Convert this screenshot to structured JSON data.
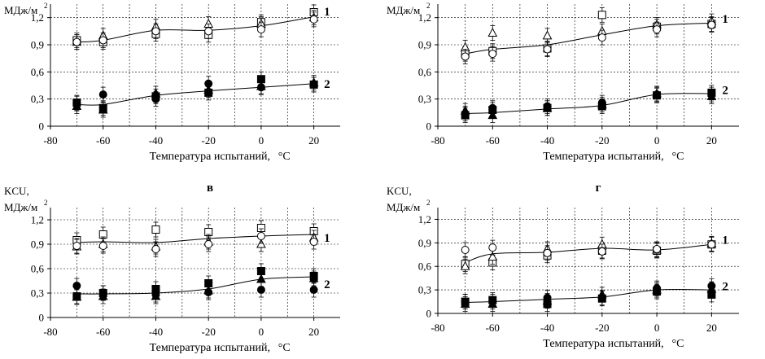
{
  "chart_data": [
    {
      "type": "scatter",
      "title": "",
      "ylabel_top": "",
      "ylabel_units": "МДж/м",
      "ylabel_sup": "2",
      "xlabel": "Температура испытаний,",
      "xlabel_unit": "°С",
      "xlim": [
        -80,
        30
      ],
      "ylim": [
        0,
        1.35
      ],
      "xticks": [
        "-80",
        "-60",
        "-40",
        "-20",
        "0",
        "20"
      ],
      "yticks": [
        "0",
        "0,3",
        "0,6",
        "0,9",
        "1,2"
      ],
      "grid": true,
      "curve_labels": [
        {
          "text": "1",
          "x": 25,
          "y": 1.27
        },
        {
          "text": "2",
          "x": 25,
          "y": 0.47
        }
      ],
      "series": [
        {
          "marker": "open-square",
          "points": [
            [
              -70,
              0.95
            ],
            [
              -60,
              0.93
            ],
            [
              -40,
              1.02
            ],
            [
              -20,
              1.01
            ],
            [
              0,
              1.15
            ],
            [
              20,
              1.26
            ]
          ]
        },
        {
          "marker": "open-triangle",
          "points": [
            [
              -70,
              0.93
            ],
            [
              -60,
              1.0
            ],
            [
              -40,
              1.1
            ],
            [
              -20,
              1.13
            ],
            [
              0,
              1.13
            ],
            [
              20,
              1.2
            ]
          ]
        },
        {
          "marker": "open-circle",
          "points": [
            [
              -70,
              0.93
            ],
            [
              -60,
              0.95
            ],
            [
              -40,
              1.05
            ],
            [
              -20,
              1.05
            ],
            [
              0,
              1.07
            ],
            [
              20,
              1.18
            ]
          ]
        },
        {
          "marker": "filled-square",
          "points": [
            [
              -70,
              0.26
            ],
            [
              -60,
              0.2
            ],
            [
              -40,
              0.33
            ],
            [
              -20,
              0.37
            ],
            [
              0,
              0.52
            ],
            [
              20,
              0.46
            ]
          ]
        },
        {
          "marker": "filled-triangle",
          "points": [
            [
              -70,
              0.22
            ],
            [
              -60,
              0.18
            ],
            [
              -40,
              0.36
            ],
            [
              -20,
              0.4
            ],
            [
              0,
              0.44
            ],
            [
              20,
              0.48
            ]
          ]
        },
        {
          "marker": "filled-circle",
          "points": [
            [
              -70,
              0.25
            ],
            [
              -60,
              0.35
            ],
            [
              -40,
              0.3
            ],
            [
              -20,
              0.47
            ],
            [
              0,
              0.43
            ],
            [
              20,
              0.46
            ]
          ]
        }
      ],
      "trend": [
        {
          "points": [
            [
              -70,
              0.93
            ],
            [
              -60,
              0.95
            ],
            [
              -40,
              1.06
            ],
            [
              -20,
              1.06
            ],
            [
              0,
              1.11
            ],
            [
              20,
              1.21
            ]
          ]
        },
        {
          "points": [
            [
              -70,
              0.24
            ],
            [
              -60,
              0.24
            ],
            [
              -40,
              0.34
            ],
            [
              -20,
              0.39
            ],
            [
              0,
              0.43
            ],
            [
              20,
              0.47
            ]
          ]
        }
      ]
    },
    {
      "type": "scatter",
      "title": "",
      "ylabel_top": "",
      "ylabel_units": "МДж/м",
      "ylabel_sup": "2",
      "xlabel": "Температура испытаний,",
      "xlabel_unit": "°С",
      "xlim": [
        -80,
        30
      ],
      "ylim": [
        0,
        1.35
      ],
      "xticks": [
        "-80",
        "-60",
        "-40",
        "-20",
        "0",
        "20"
      ],
      "yticks": [
        "0",
        "0,3",
        "0,6",
        "0,9",
        "1,2"
      ],
      "grid": true,
      "curve_labels": [
        {
          "text": "1",
          "x": 25,
          "y": 1.19
        },
        {
          "text": "2",
          "x": 25,
          "y": 0.4
        }
      ],
      "series": [
        {
          "marker": "open-square",
          "points": [
            [
              -70,
              0.8
            ],
            [
              -60,
              0.83
            ],
            [
              -40,
              0.86
            ],
            [
              -20,
              1.23
            ],
            [
              0,
              1.1
            ],
            [
              20,
              1.13
            ]
          ]
        },
        {
          "marker": "open-triangle",
          "points": [
            [
              -70,
              0.87
            ],
            [
              -60,
              1.03
            ],
            [
              -40,
              1.0
            ],
            [
              -20,
              1.05
            ],
            [
              0,
              1.12
            ],
            [
              20,
              1.16
            ]
          ]
        },
        {
          "marker": "open-circle",
          "points": [
            [
              -70,
              0.77
            ],
            [
              -60,
              0.8
            ],
            [
              -40,
              0.85
            ],
            [
              -20,
              0.98
            ],
            [
              0,
              1.07
            ],
            [
              20,
              1.12
            ]
          ]
        },
        {
          "marker": "filled-square",
          "points": [
            [
              -70,
              0.12
            ],
            [
              -60,
              0.18
            ],
            [
              -40,
              0.2
            ],
            [
              -20,
              0.22
            ],
            [
              0,
              0.34
            ],
            [
              20,
              0.37
            ]
          ]
        },
        {
          "marker": "filled-triangle",
          "points": [
            [
              -70,
              0.17
            ],
            [
              -60,
              0.12
            ],
            [
              -40,
              0.2
            ],
            [
              -20,
              0.24
            ],
            [
              0,
              0.36
            ],
            [
              20,
              0.33
            ]
          ]
        },
        {
          "marker": "filled-circle",
          "points": [
            [
              -70,
              0.14
            ],
            [
              -60,
              0.2
            ],
            [
              -40,
              0.22
            ],
            [
              -20,
              0.26
            ],
            [
              0,
              0.35
            ],
            [
              20,
              0.35
            ]
          ]
        }
      ],
      "trend": [
        {
          "points": [
            [
              -70,
              0.8
            ],
            [
              -60,
              0.85
            ],
            [
              -40,
              0.9
            ],
            [
              -20,
              1.01
            ],
            [
              0,
              1.11
            ],
            [
              20,
              1.14
            ]
          ]
        },
        {
          "points": [
            [
              -70,
              0.14
            ],
            [
              -60,
              0.15
            ],
            [
              -40,
              0.19
            ],
            [
              -20,
              0.23
            ],
            [
              0,
              0.35
            ],
            [
              20,
              0.36
            ]
          ]
        }
      ]
    },
    {
      "type": "scatter",
      "title": "в",
      "ylabel_top": "KCU,",
      "ylabel_units": "МДж/м",
      "ylabel_sup": "2",
      "xlabel": "Температура испытаний,",
      "xlabel_unit": "°С",
      "xlim": [
        -80,
        30
      ],
      "ylim": [
        0,
        1.35
      ],
      "xticks": [
        "-80",
        "-60",
        "-40",
        "-20",
        "0",
        "20"
      ],
      "yticks": [
        "0",
        "0,3",
        "0,6",
        "0,9",
        "1,2"
      ],
      "grid": true,
      "curve_labels": [
        {
          "text": "1",
          "x": 25,
          "y": 0.98
        },
        {
          "text": "2",
          "x": 25,
          "y": 0.41
        }
      ],
      "series": [
        {
          "marker": "open-square",
          "points": [
            [
              -70,
              0.95
            ],
            [
              -60,
              1.02
            ],
            [
              -40,
              1.08
            ],
            [
              -20,
              1.05
            ],
            [
              0,
              1.1
            ],
            [
              20,
              1.06
            ]
          ]
        },
        {
          "marker": "open-triangle",
          "points": [
            [
              -70,
              0.87
            ],
            [
              -60,
              0.9
            ],
            [
              -40,
              0.87
            ],
            [
              -20,
              0.93
            ],
            [
              0,
              0.9
            ],
            [
              20,
              0.98
            ]
          ]
        },
        {
          "marker": "open-circle",
          "points": [
            [
              -70,
              0.88
            ],
            [
              -60,
              0.88
            ],
            [
              -40,
              0.84
            ],
            [
              -20,
              0.9
            ],
            [
              0,
              1.0
            ],
            [
              20,
              0.93
            ]
          ]
        },
        {
          "marker": "filled-square",
          "points": [
            [
              -70,
              0.26
            ],
            [
              -60,
              0.3
            ],
            [
              -40,
              0.35
            ],
            [
              -20,
              0.42
            ],
            [
              0,
              0.57
            ],
            [
              20,
              0.51
            ]
          ]
        },
        {
          "marker": "filled-triangle",
          "points": [
            [
              -70,
              0.25
            ],
            [
              -60,
              0.26
            ],
            [
              -40,
              0.26
            ],
            [
              -20,
              0.33
            ],
            [
              0,
              0.47
            ],
            [
              20,
              0.48
            ]
          ]
        },
        {
          "marker": "filled-circle",
          "points": [
            [
              -70,
              0.39
            ],
            [
              -60,
              0.3
            ],
            [
              -40,
              0.28
            ],
            [
              -20,
              0.31
            ],
            [
              0,
              0.34
            ],
            [
              20,
              0.34
            ]
          ]
        }
      ],
      "trend": [
        {
          "points": [
            [
              -70,
              0.92
            ],
            [
              -60,
              0.93
            ],
            [
              -40,
              0.92
            ],
            [
              -20,
              0.97
            ],
            [
              0,
              1.0
            ],
            [
              20,
              1.02
            ]
          ]
        },
        {
          "points": [
            [
              -70,
              0.29
            ],
            [
              -60,
              0.29
            ],
            [
              -40,
              0.3
            ],
            [
              -20,
              0.35
            ],
            [
              0,
              0.47
            ],
            [
              20,
              0.5
            ]
          ]
        }
      ]
    },
    {
      "type": "scatter",
      "title": "г",
      "ylabel_top": "KCU,",
      "ylabel_units": "МДж/м",
      "ylabel_sup": "2",
      "xlabel": "Температура испытаний,",
      "xlabel_unit": "°С",
      "xlim": [
        -80,
        30
      ],
      "ylim": [
        0,
        1.35
      ],
      "xticks": [
        "-80",
        "-60",
        "-40",
        "-20",
        "0",
        "20"
      ],
      "yticks": [
        "0",
        "0,3",
        "0,6",
        "0,9",
        "1,2"
      ],
      "grid": true,
      "curve_labels": [
        {
          "text": "1",
          "x": 25,
          "y": 0.94
        },
        {
          "text": "2",
          "x": 25,
          "y": 0.35
        }
      ],
      "series": [
        {
          "marker": "open-square",
          "points": [
            [
              -70,
              0.63
            ],
            [
              -60,
              0.65
            ],
            [
              -40,
              0.74
            ],
            [
              -20,
              0.8
            ],
            [
              0,
              0.8
            ],
            [
              20,
              0.88
            ]
          ]
        },
        {
          "marker": "open-triangle",
          "points": [
            [
              -70,
              0.6
            ],
            [
              -60,
              0.72
            ],
            [
              -40,
              0.82
            ],
            [
              -20,
              0.88
            ],
            [
              0,
              0.81
            ],
            [
              20,
              0.89
            ]
          ]
        },
        {
          "marker": "open-circle",
          "points": [
            [
              -70,
              0.81
            ],
            [
              -60,
              0.84
            ],
            [
              -40,
              0.77
            ],
            [
              -20,
              0.79
            ],
            [
              0,
              0.82
            ],
            [
              20,
              0.88
            ]
          ]
        },
        {
          "marker": "filled-square",
          "points": [
            [
              -70,
              0.15
            ],
            [
              -60,
              0.17
            ],
            [
              -40,
              0.12
            ],
            [
              -20,
              0.19
            ],
            [
              0,
              0.28
            ],
            [
              20,
              0.24
            ]
          ]
        },
        {
          "marker": "filled-triangle",
          "points": [
            [
              -70,
              0.12
            ],
            [
              -60,
              0.12
            ],
            [
              -40,
              0.16
            ],
            [
              -20,
              0.24
            ],
            [
              0,
              0.3
            ],
            [
              20,
              0.31
            ]
          ]
        },
        {
          "marker": "filled-circle",
          "points": [
            [
              -70,
              0.15
            ],
            [
              -60,
              0.15
            ],
            [
              -40,
              0.2
            ],
            [
              -20,
              0.2
            ],
            [
              0,
              0.32
            ],
            [
              20,
              0.35
            ]
          ]
        }
      ],
      "trend": [
        {
          "points": [
            [
              -70,
              0.65
            ],
            [
              -60,
              0.76
            ],
            [
              -40,
              0.78
            ],
            [
              -20,
              0.83
            ],
            [
              0,
              0.81
            ],
            [
              20,
              0.88
            ]
          ]
        },
        {
          "points": [
            [
              -70,
              0.14
            ],
            [
              -60,
              0.15
            ],
            [
              -40,
              0.18
            ],
            [
              -20,
              0.21
            ],
            [
              0,
              0.3
            ],
            [
              20,
              0.3
            ]
          ]
        }
      ]
    }
  ]
}
